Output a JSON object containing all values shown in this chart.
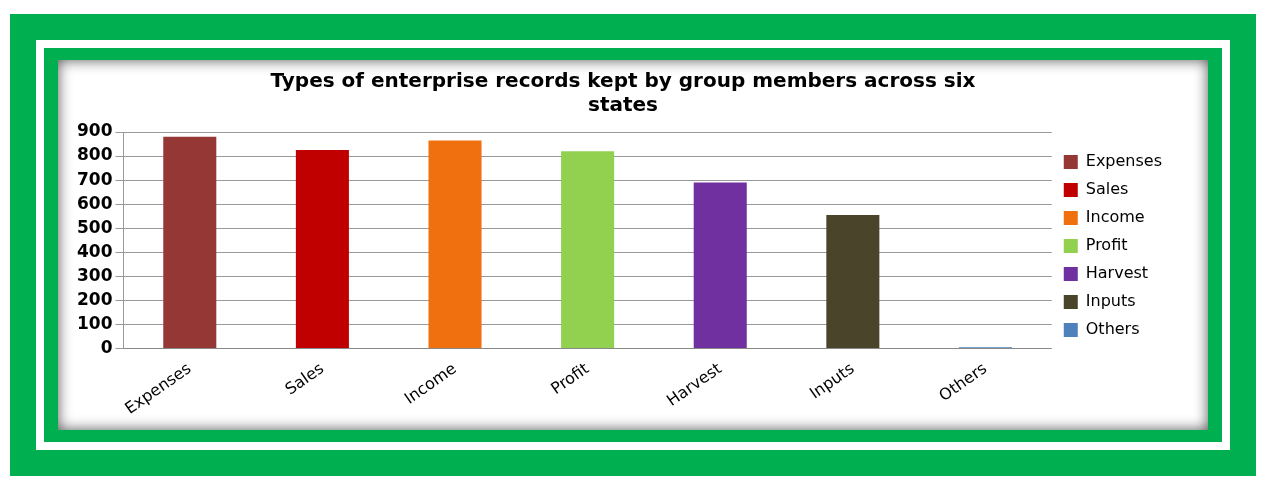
{
  "chart_data": {
    "type": "bar",
    "title": "Types of enterprise records kept by group members across six states",
    "categories": [
      "Expenses",
      "Sales",
      "Income",
      "Profit",
      "Harvest",
      "Inputs",
      "Others"
    ],
    "stacked": true,
    "series": [
      {
        "name": "Expenses",
        "color": "#953735",
        "values": [
          880,
          null,
          null,
          null,
          null,
          null,
          null
        ]
      },
      {
        "name": "Sales",
        "color": "#c00000",
        "values": [
          null,
          825,
          null,
          null,
          null,
          null,
          null
        ]
      },
      {
        "name": "Income",
        "color": "#f07010",
        "values": [
          null,
          null,
          865,
          null,
          null,
          null,
          null
        ]
      },
      {
        "name": "Profit",
        "color": "#92d050",
        "values": [
          null,
          null,
          null,
          820,
          null,
          null,
          null
        ]
      },
      {
        "name": "Harvest",
        "color": "#7030a0",
        "values": [
          null,
          null,
          null,
          null,
          690,
          null,
          null
        ]
      },
      {
        "name": "Inputs",
        "color": "#4a452a",
        "values": [
          null,
          null,
          null,
          null,
          null,
          555,
          null
        ]
      },
      {
        "name": "Others",
        "color": "#4f81bd",
        "values": [
          null,
          null,
          null,
          null,
          null,
          null,
          5
        ]
      }
    ],
    "ylim": [
      0,
      900
    ],
    "yticks": [
      0,
      100,
      200,
      300,
      400,
      500,
      600,
      700,
      800,
      900
    ],
    "grid": "y",
    "legend": "right"
  }
}
